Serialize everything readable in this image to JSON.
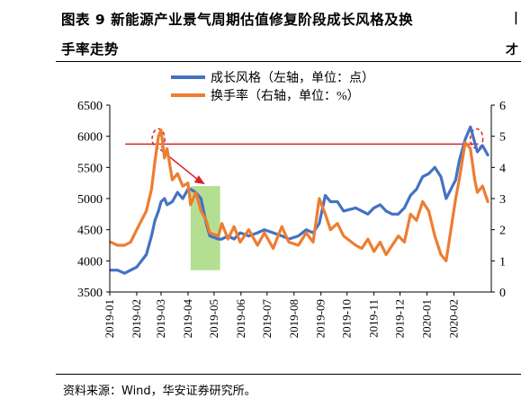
{
  "figure": {
    "title_line1": "图表 9 新能源产业景气周期估值修复阶段成长风格及换",
    "title_line2": "手率走势",
    "source": "资料来源：Wind，华安证券研究所。"
  },
  "chart_data": {
    "type": "line",
    "legend": [
      "成长风格（左轴，单位：点）",
      "换手率（右轴，单位：%）"
    ],
    "x_tick_labels": [
      "2019-01",
      "2019-02",
      "2019-03",
      "2019-04",
      "2019-05",
      "2019-06",
      "2019-07",
      "2019-08",
      "2019-09",
      "2019-10",
      "2019-11",
      "2019-12",
      "2020-01",
      "2020-02"
    ],
    "y_left": {
      "ticks": [
        3500,
        4000,
        4500,
        5000,
        5500,
        6000,
        6500
      ],
      "range": [
        3500,
        6500
      ]
    },
    "y_right": {
      "ticks": [
        0,
        1,
        2,
        3,
        4,
        5,
        6
      ],
      "range": [
        0,
        6
      ]
    },
    "series": [
      {
        "name": "成长风格（左轴，单位：点）",
        "axis": "left",
        "color": "#4472c4",
        "x": [
          "2019-01-02",
          "2019-01-10",
          "2019-01-18",
          "2019-01-25",
          "2019-02-01",
          "2019-02-12",
          "2019-02-18",
          "2019-02-22",
          "2019-02-26",
          "2019-03-01",
          "2019-03-05",
          "2019-03-08",
          "2019-03-14",
          "2019-03-20",
          "2019-03-26",
          "2019-04-01",
          "2019-04-04",
          "2019-04-10",
          "2019-04-16",
          "2019-04-22",
          "2019-04-26",
          "2019-05-06",
          "2019-05-10",
          "2019-05-17",
          "2019-05-24",
          "2019-05-31",
          "2019-06-10",
          "2019-06-20",
          "2019-06-28",
          "2019-07-08",
          "2019-07-18",
          "2019-07-26",
          "2019-08-06",
          "2019-08-15",
          "2019-08-23",
          "2019-08-30",
          "2019-09-06",
          "2019-09-12",
          "2019-09-20",
          "2019-09-27",
          "2019-10-11",
          "2019-10-18",
          "2019-10-25",
          "2019-11-01",
          "2019-11-08",
          "2019-11-15",
          "2019-11-22",
          "2019-11-29",
          "2019-12-06",
          "2019-12-13",
          "2019-12-20",
          "2019-12-27",
          "2020-01-03",
          "2020-01-10",
          "2020-01-17",
          "2020-01-23",
          "2020-02-03",
          "2020-02-07",
          "2020-02-14",
          "2020-02-20",
          "2020-02-25",
          "2020-02-28",
          "2020-03-05",
          "2020-03-11"
        ],
        "y": [
          3850,
          3850,
          3800,
          3850,
          3900,
          4100,
          4400,
          4650,
          4800,
          4950,
          5000,
          4900,
          4950,
          5100,
          5000,
          5150,
          5150,
          5100,
          5000,
          4600,
          4400,
          4350,
          4350,
          4400,
          4350,
          4450,
          4400,
          4450,
          4500,
          4450,
          4400,
          4350,
          4400,
          4500,
          4450,
          4600,
          5050,
          4950,
          4950,
          4800,
          4850,
          4800,
          4750,
          4850,
          4900,
          4800,
          4750,
          4750,
          4850,
          5050,
          5150,
          5350,
          5400,
          5500,
          5350,
          5000,
          5300,
          5600,
          5950,
          6150,
          5900,
          5750,
          5850,
          5700
        ]
      },
      {
        "name": "换手率（右轴，单位：%）",
        "axis": "right",
        "color": "#ed7d31",
        "x": [
          "2019-01-02",
          "2019-01-10",
          "2019-01-18",
          "2019-01-25",
          "2019-02-01",
          "2019-02-12",
          "2019-02-18",
          "2019-02-22",
          "2019-02-26",
          "2019-03-01",
          "2019-03-05",
          "2019-03-08",
          "2019-03-14",
          "2019-03-20",
          "2019-03-26",
          "2019-04-01",
          "2019-04-04",
          "2019-04-10",
          "2019-04-16",
          "2019-04-22",
          "2019-04-26",
          "2019-05-06",
          "2019-05-10",
          "2019-05-17",
          "2019-05-24",
          "2019-05-31",
          "2019-06-10",
          "2019-06-20",
          "2019-06-28",
          "2019-07-08",
          "2019-07-18",
          "2019-07-26",
          "2019-08-06",
          "2019-08-15",
          "2019-08-23",
          "2019-08-30",
          "2019-09-06",
          "2019-09-12",
          "2019-09-20",
          "2019-09-27",
          "2019-10-11",
          "2019-10-18",
          "2019-10-25",
          "2019-11-01",
          "2019-11-08",
          "2019-11-15",
          "2019-11-22",
          "2019-11-29",
          "2019-12-06",
          "2019-12-13",
          "2019-12-20",
          "2019-12-27",
          "2020-01-03",
          "2020-01-10",
          "2020-01-17",
          "2020-01-23",
          "2020-02-03",
          "2020-02-07",
          "2020-02-14",
          "2020-02-20",
          "2020-02-25",
          "2020-02-28",
          "2020-03-05",
          "2020-03-11"
        ],
        "y": [
          1.6,
          1.5,
          1.5,
          1.6,
          2.0,
          2.6,
          3.3,
          4.2,
          5.0,
          5.2,
          4.3,
          4.6,
          3.6,
          3.8,
          3.4,
          3.5,
          2.8,
          3.2,
          2.6,
          2.3,
          1.9,
          1.8,
          2.2,
          1.7,
          2.1,
          1.6,
          2.0,
          1.5,
          1.9,
          1.4,
          2.1,
          1.6,
          1.5,
          1.9,
          1.6,
          3.0,
          2.5,
          2.0,
          2.2,
          1.8,
          1.5,
          1.4,
          1.7,
          1.3,
          1.6,
          1.2,
          1.5,
          1.8,
          1.6,
          2.5,
          2.3,
          2.9,
          2.6,
          1.8,
          1.2,
          1.0,
          3.0,
          3.6,
          4.8,
          4.6,
          3.6,
          3.2,
          3.4,
          2.9
        ]
      }
    ],
    "annotations": {
      "reference_line_right_axis": 4.75,
      "marked_dates": [
        "2019-02-25",
        "2020-02-25"
      ],
      "shaded_range": [
        "2019-04-04",
        "2019-05-08"
      ],
      "shaded_left_axis_range": [
        3850,
        5200
      ]
    },
    "grid": false,
    "legend_position": "top"
  },
  "right_edge_glyphs": {
    "line1": "|",
    "line2": "才"
  }
}
